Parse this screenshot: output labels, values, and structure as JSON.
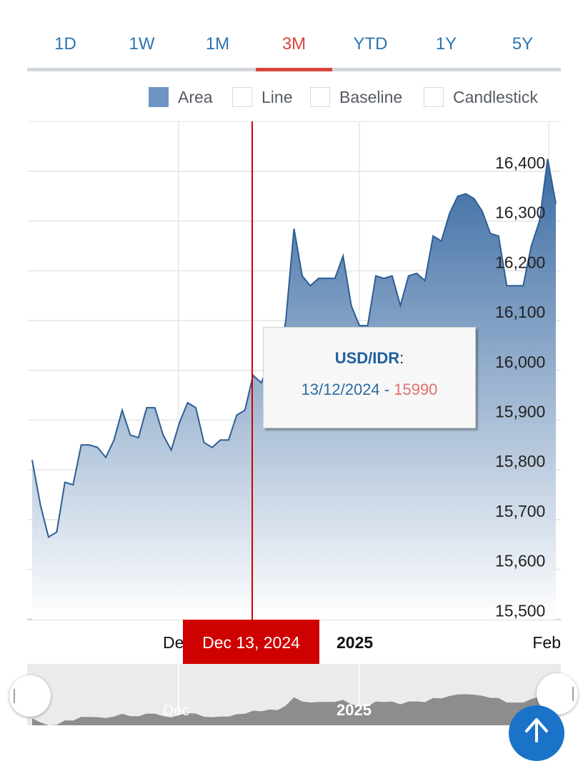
{
  "range_tabs": [
    "1D",
    "1W",
    "1M",
    "3M",
    "YTD",
    "1Y",
    "5Y"
  ],
  "active_tab": "3M",
  "chart_types": [
    "Area",
    "Line",
    "Baseline",
    "Candlestick"
  ],
  "selected_chart_type": "Area",
  "tooltip": {
    "pair": "USD/IDR",
    "colon": ":",
    "date": "13/12/2024",
    "sep": " - ",
    "value": "15990"
  },
  "cursor_label": "Dec 13, 2024",
  "x_axis_labels": [
    "Dec",
    "2025",
    "Feb"
  ],
  "navigator_labels": [
    "Dec",
    "2025"
  ],
  "y_tick_labels": [
    "16,400",
    "16,300",
    "16,200",
    "16,100",
    "16,000",
    "15,900",
    "15,800",
    "15,700",
    "15,600",
    "15,500"
  ],
  "colors": {
    "tab_text": "#2d74b0",
    "tab_active": "#d9443c",
    "area_top": "#3b6ba3",
    "area_bottom": "#ffffff",
    "line": "#2d5e94",
    "cursor": "#d00000",
    "tooltip_value": "#e2706b",
    "navigator_area": "#8d8d8d"
  },
  "chart_data": {
    "type": "area",
    "series": [
      {
        "values": [
          15820,
          15730,
          15665,
          15675,
          15775,
          15770,
          15850,
          15850,
          15845,
          15825,
          15860,
          15920,
          15870,
          15865,
          15925,
          15925,
          15870,
          15840,
          15895,
          15935,
          15925,
          15855,
          15845,
          15860,
          15860,
          15910,
          15920,
          15990,
          15975,
          16015,
          16000,
          16100,
          16285,
          16190,
          16170,
          16185,
          16185,
          16185,
          16230,
          16130,
          16090,
          16090,
          16190,
          16185,
          16190,
          16130,
          16190,
          16195,
          16180,
          16270,
          16260,
          16315,
          16350,
          16355,
          16345,
          16320,
          16275,
          16270,
          16170,
          16170,
          16170,
          16250,
          16300,
          16425,
          16335
        ]
      }
    ],
    "yticks": [
      16400,
      16300,
      16200,
      16100,
      16000,
      15900,
      15800,
      15700,
      15600,
      15500
    ],
    "grid": true
  }
}
